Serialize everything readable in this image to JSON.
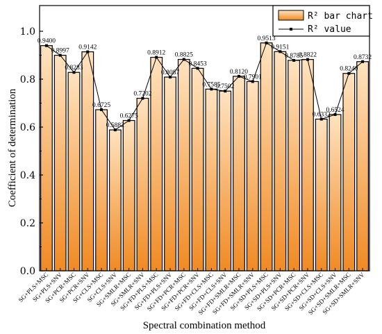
{
  "chart_data": {
    "type": "bar",
    "xlabel": "Spectral combination method",
    "ylabel": "Coefficient of determination",
    "ylim": [
      0,
      1.0
    ],
    "yticks": [
      "0.0",
      "0.2",
      "0.4",
      "0.6",
      "0.8",
      "1.0"
    ],
    "grid": false,
    "legend_position": "top-right",
    "legend": {
      "bar_label": "R² bar chart",
      "line_label": "R² value"
    },
    "colors": {
      "bar_top": "#ffe3c0",
      "bar_bottom": "#f08a24",
      "bar_stroke": "#000000",
      "line": "#000000"
    },
    "categories": [
      "SG+PLS+MSC",
      "SG+PLS+SNV",
      "SG+PCR+MSC",
      "SG+PCR+SNV",
      "SG+CLS+MSC",
      "SG+CLS+SNV",
      "SG+SMLR+MSC",
      "SG+SMLR+SNV",
      "SG+FD+PLS+MSC",
      "SG+FD+PLS+SNV",
      "SG+FD+PCR+MSC",
      "SG+FD+PCR+SNV",
      "SG+FD+CLS+MSC",
      "SG+FD+CLS+SNV",
      "SG+FD+SMLR+MSC",
      "SG+FD+SMLR+SNV",
      "SG+SD+PLS+MSC",
      "SG+SD+PLS+SNV",
      "SG+SD+PCR+MSC",
      "SG+SD+PCR+SNV",
      "SG+SD+CLS+MSC",
      "SG+SD+CLS+SNV",
      "SG+SD+SMLR+MSC",
      "SG+SD+SMLR+SNV"
    ],
    "values": [
      0.94,
      0.8997,
      0.8283,
      0.9142,
      0.6725,
      0.5882,
      0.6275,
      0.7202,
      0.8912,
      0.8087,
      0.8825,
      0.8453,
      0.7585,
      0.7502,
      0.812,
      0.7901,
      0.9513,
      0.9151,
      0.8785,
      0.8822,
      0.6332,
      0.6524,
      0.824,
      0.8732
    ],
    "data_labels": [
      "0.9400",
      "0.8997",
      "0.8283",
      "0.9142",
      "0.6725",
      "0.5882",
      "0.6275",
      "0.7202",
      "0.8912",
      "0.8087",
      "0.8825",
      "0.8453",
      "0.7585",
      "0.7502",
      "0.8120",
      "0.7901",
      "0.9513",
      "0.9151",
      "0.8785",
      "0.8822",
      "0.6332",
      "0.6524",
      "0.8240",
      "0.8732"
    ]
  }
}
